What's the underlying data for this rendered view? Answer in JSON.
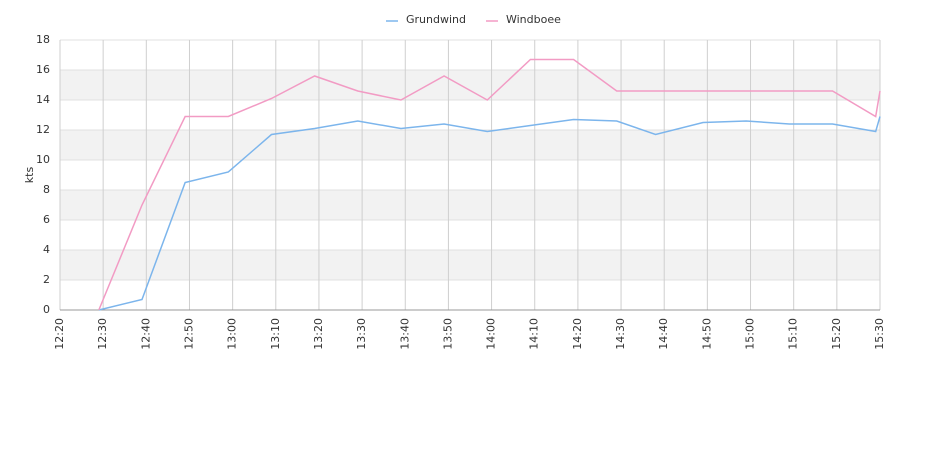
{
  "chart_data": {
    "type": "line",
    "y_label": "kts",
    "x": [
      "12:29",
      "12:39",
      "12:49",
      "12:59",
      "13:09",
      "13:19",
      "13:29",
      "13:39",
      "13:49",
      "13:59",
      "14:09",
      "14:19",
      "14:29",
      "14:38",
      "14:49",
      "14:59",
      "15:09",
      "15:19",
      "15:29",
      "15:30"
    ],
    "series": [
      {
        "name": "Grundwind",
        "color": "#7cb5ec",
        "values": [
          0,
          0.7,
          8.5,
          9.2,
          11.7,
          12.1,
          12.6,
          12.1,
          12.4,
          11.9,
          12.3,
          12.7,
          12.6,
          11.7,
          12.5,
          12.6,
          12.4,
          12.4,
          11.9,
          12.9
        ]
      },
      {
        "name": "Windboee",
        "color": "#f29bc4",
        "values": [
          0,
          7,
          12.9,
          12.9,
          14.1,
          15.6,
          14.6,
          14.0,
          15.6,
          14.0,
          16.7,
          16.7,
          14.6,
          14.6,
          14.6,
          14.6,
          14.6,
          14.6,
          12.9,
          14.6
        ]
      }
    ],
    "xlim": [
      "12:20",
      "15:30"
    ],
    "xticks": [
      "12:20",
      "12:30",
      "12:40",
      "12:50",
      "13:00",
      "13:10",
      "13:20",
      "13:30",
      "13:40",
      "13:50",
      "14:00",
      "14:10",
      "14:20",
      "14:30",
      "14:40",
      "14:50",
      "15:00",
      "15:10",
      "15:20",
      "15:30"
    ],
    "ylim": [
      0,
      18
    ],
    "yticks": [
      0,
      2,
      4,
      6,
      8,
      10,
      12,
      14,
      16,
      18
    ],
    "grid": true,
    "alternate_bands": true,
    "legend": "top"
  }
}
